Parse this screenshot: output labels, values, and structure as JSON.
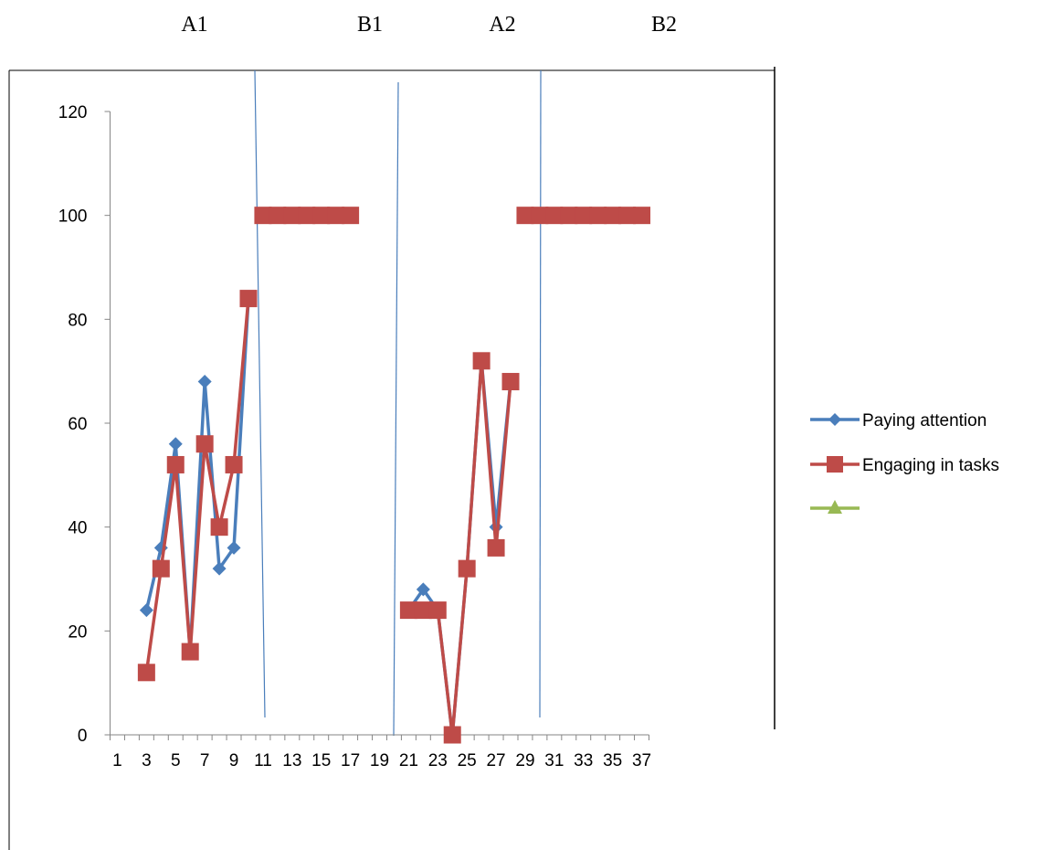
{
  "phase_labels": [
    "A1",
    "B1",
    "A2",
    "B2"
  ],
  "colors": {
    "attention": "#4a7ebb",
    "tasks": "#be4b48",
    "third": "#98b954",
    "divider": "#4a7ebb",
    "axis": "#868686"
  },
  "chart_data": {
    "type": "line",
    "x_ticks": [
      "1",
      "3",
      "5",
      "7",
      "9",
      "11",
      "13",
      "15",
      "17",
      "19",
      "21",
      "23",
      "25",
      "27",
      "29",
      "31",
      "33",
      "35",
      "37"
    ],
    "y_ticks": [
      "0",
      "20",
      "40",
      "60",
      "80",
      "100",
      "120"
    ],
    "xlim": [
      1,
      37
    ],
    "ylim": [
      0,
      120
    ],
    "grid": false,
    "legend_position": "right",
    "phase_boundaries": [
      10.5,
      19.5,
      29.5
    ],
    "series": [
      {
        "name": "Paying attention",
        "marker": "diamond",
        "points": [
          [
            3,
            24
          ],
          [
            4,
            36
          ],
          [
            5,
            56
          ],
          [
            6,
            16
          ],
          [
            7,
            68
          ],
          [
            8,
            32
          ],
          [
            9,
            36
          ],
          [
            10,
            84
          ],
          [
            11,
            100
          ],
          [
            12,
            100
          ],
          [
            13,
            100
          ],
          [
            14,
            100
          ],
          [
            15,
            100
          ],
          [
            16,
            100
          ],
          [
            17,
            100
          ],
          [
            21,
            24
          ],
          [
            22,
            28
          ],
          [
            23,
            24
          ],
          [
            24,
            0
          ],
          [
            25,
            32
          ],
          [
            26,
            72
          ],
          [
            27,
            40
          ],
          [
            28,
            68
          ],
          [
            29,
            100
          ],
          [
            30,
            100
          ],
          [
            31,
            100
          ],
          [
            32,
            100
          ],
          [
            33,
            100
          ],
          [
            34,
            100
          ],
          [
            35,
            100
          ],
          [
            36,
            100
          ],
          [
            37,
            100
          ]
        ],
        "segments": [
          [
            3,
            10
          ],
          [
            21,
            28
          ]
        ]
      },
      {
        "name": "Engaging in tasks",
        "marker": "square",
        "points": [
          [
            3,
            12
          ],
          [
            4,
            32
          ],
          [
            5,
            52
          ],
          [
            6,
            16
          ],
          [
            7,
            56
          ],
          [
            8,
            40
          ],
          [
            9,
            52
          ],
          [
            10,
            84
          ],
          [
            11,
            100
          ],
          [
            12,
            100
          ],
          [
            13,
            100
          ],
          [
            14,
            100
          ],
          [
            15,
            100
          ],
          [
            16,
            100
          ],
          [
            17,
            100
          ],
          [
            21,
            24
          ],
          [
            22,
            24
          ],
          [
            23,
            24
          ],
          [
            24,
            0
          ],
          [
            25,
            32
          ],
          [
            26,
            72
          ],
          [
            27,
            36
          ],
          [
            28,
            68
          ],
          [
            29,
            100
          ],
          [
            30,
            100
          ],
          [
            31,
            100
          ],
          [
            32,
            100
          ],
          [
            33,
            100
          ],
          [
            34,
            100
          ],
          [
            35,
            100
          ],
          [
            36,
            100
          ],
          [
            37,
            100
          ]
        ],
        "segments": [
          [
            3,
            10
          ],
          [
            11,
            17
          ],
          [
            21,
            28
          ],
          [
            29,
            37
          ]
        ]
      },
      {
        "name": "",
        "marker": "triangle",
        "points": []
      }
    ]
  }
}
